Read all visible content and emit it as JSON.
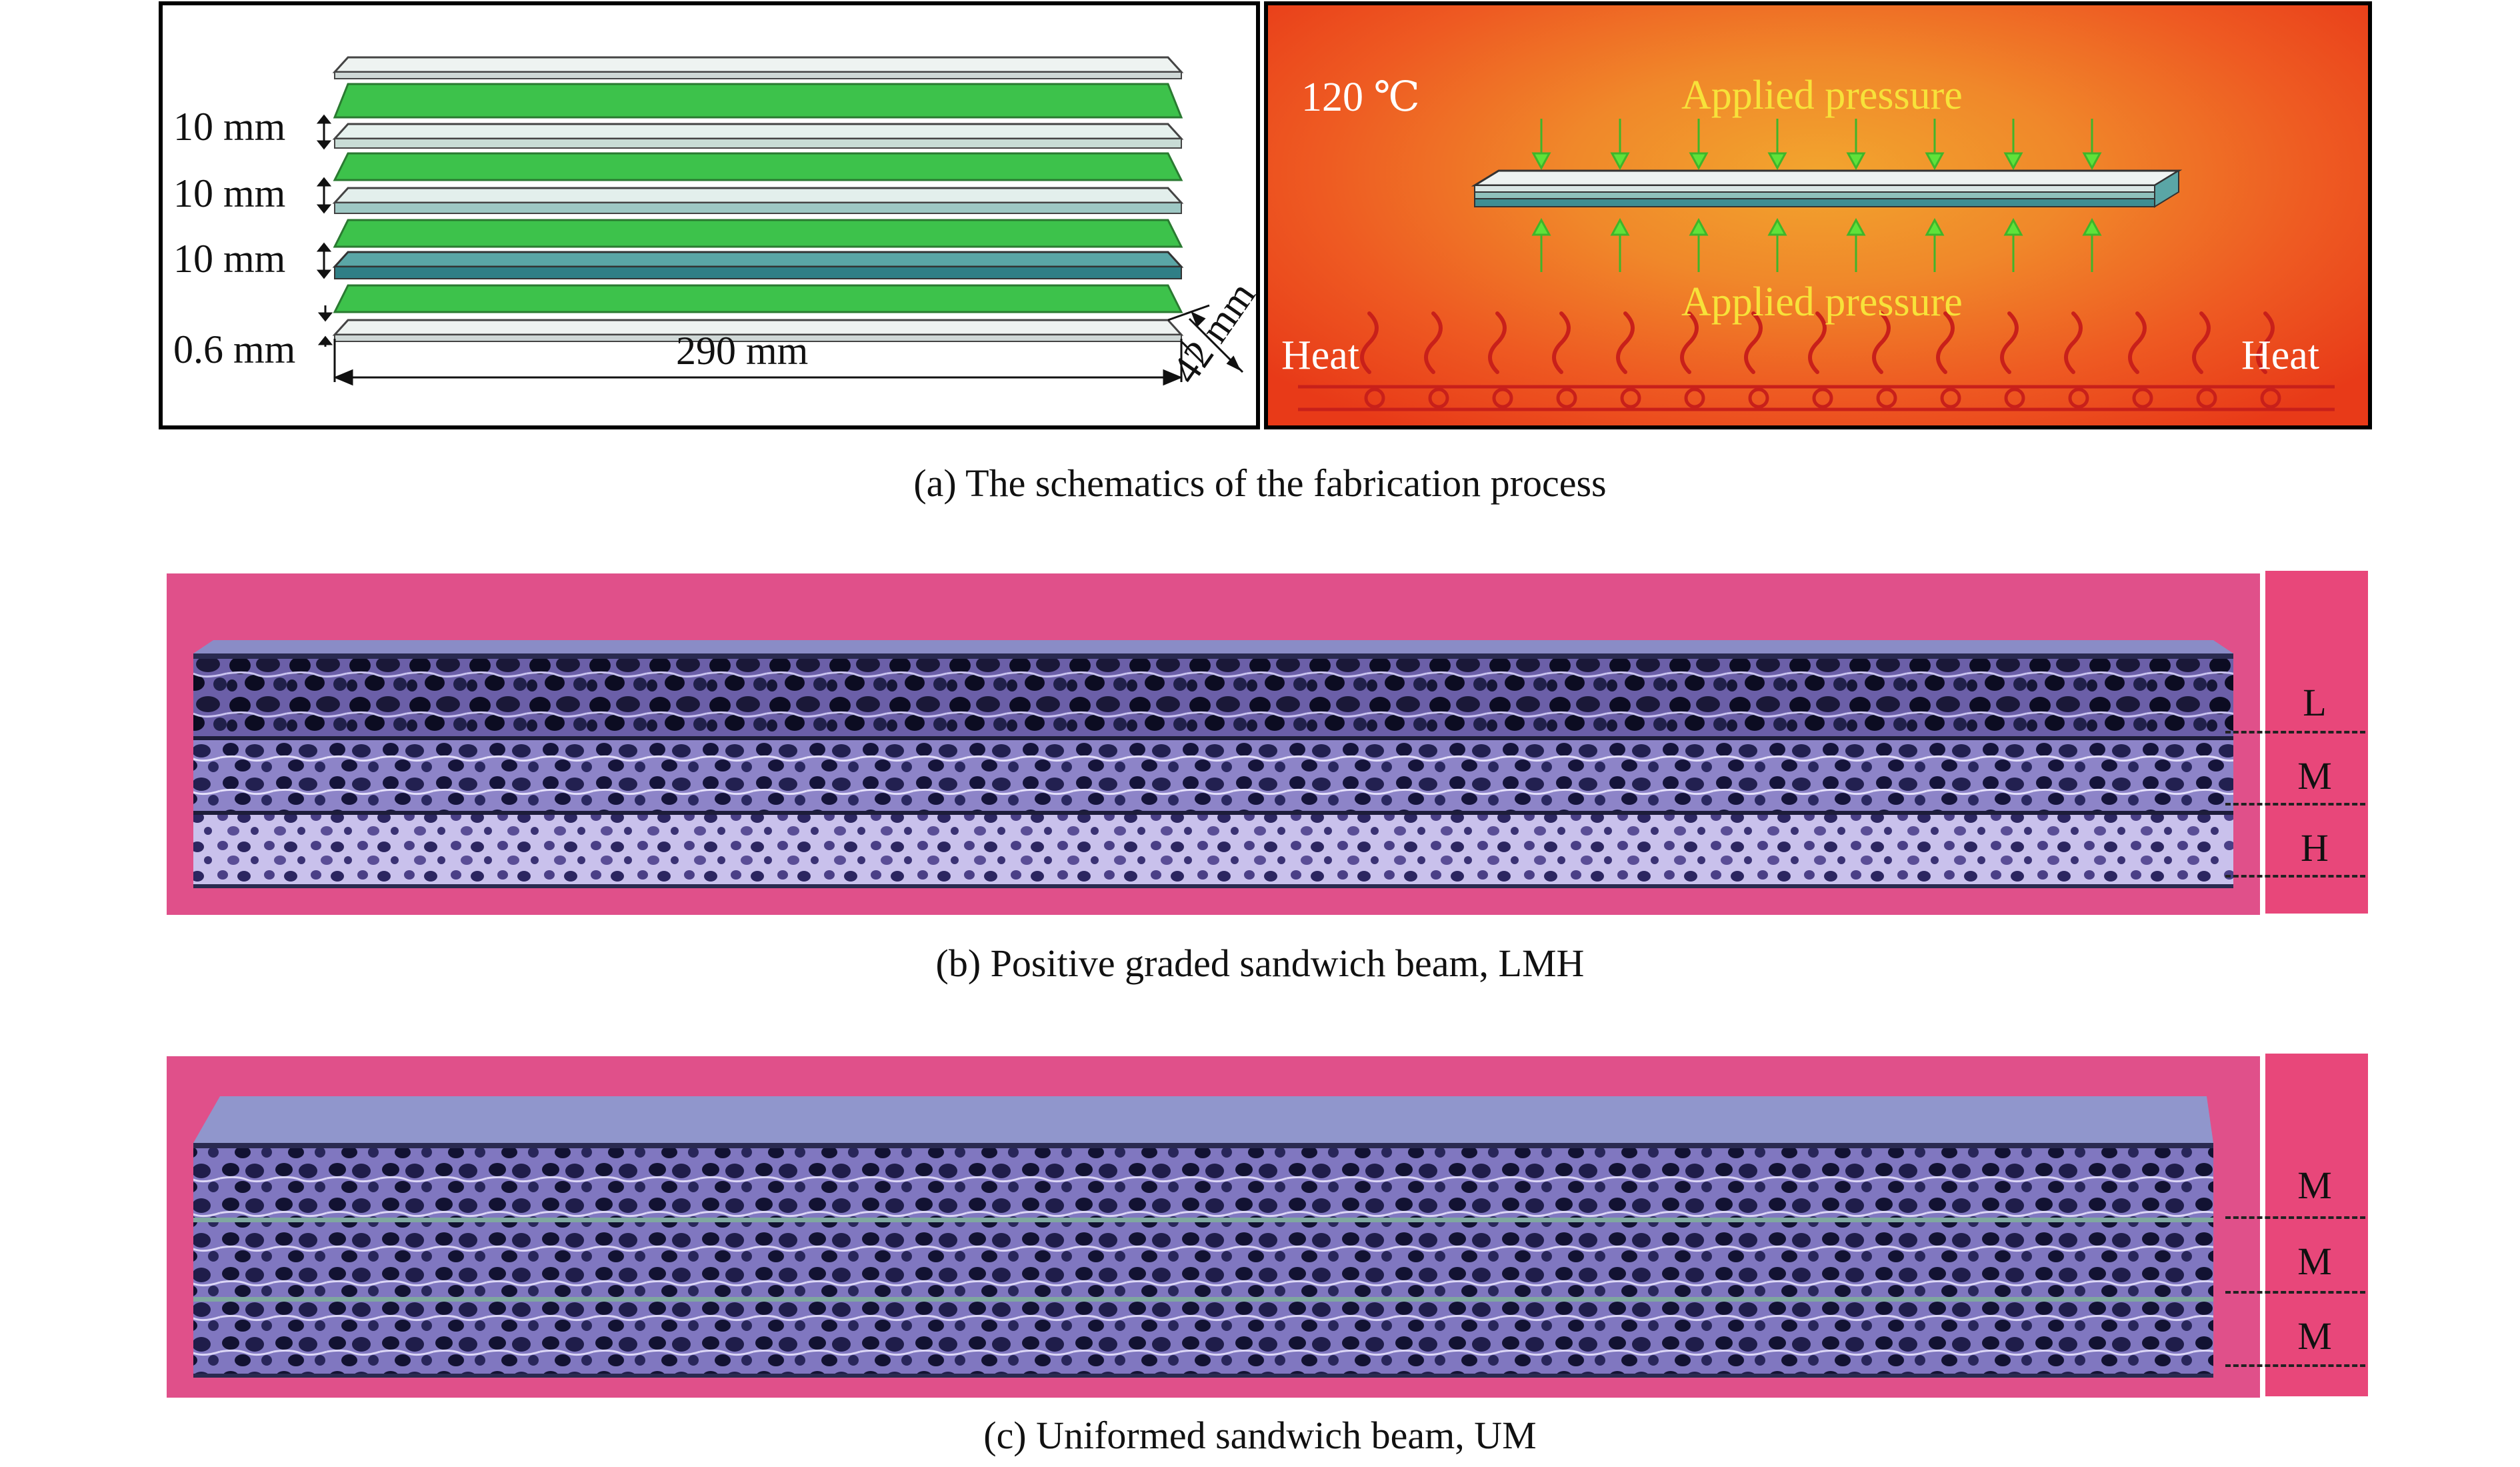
{
  "panel_a": {
    "dims": {
      "gap1": "10 mm",
      "gap2": "10 mm",
      "gap3": "10 mm",
      "face": "0.6 mm",
      "length": "290 mm",
      "width": "42 mm"
    },
    "right": {
      "temperature": "120 ℃",
      "pressure_top": "Applied pressure",
      "pressure_bottom": "Applied pressure",
      "heat_left": "Heat",
      "heat_right": "Heat"
    },
    "colors": {
      "green": "#3dc24b",
      "pale": "#e6f2ee",
      "teal": "#2f7f86",
      "text_yellow": "#f7e23a"
    }
  },
  "captions": {
    "a": "(a) The schematics of the fabrication process",
    "b": "(b) Positive graded sandwich beam, LMH",
    "c": "(c) Uniformed sandwich beam, UM"
  },
  "photo_b": {
    "labels": [
      "L",
      "M",
      "H"
    ]
  },
  "photo_c": {
    "labels": [
      "M",
      "M",
      "M"
    ]
  }
}
